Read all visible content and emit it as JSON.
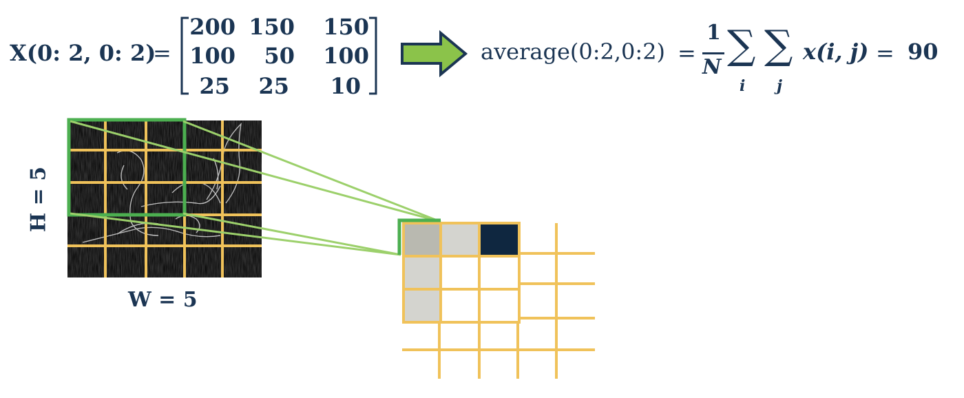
{
  "formula": {
    "lhs": "X(0: 2, 0: 2)",
    "equals": "=",
    "matrix": [
      [
        "200",
        "150",
        "150"
      ],
      [
        "100",
        "50",
        "100"
      ],
      [
        "25",
        "25",
        "10"
      ]
    ],
    "op_name": "average(0:2,0:2)",
    "equals2": "=",
    "frac_num": "1",
    "frac_den": "N",
    "sum_symbol": "∑",
    "sum_index_i": "i",
    "sum_index_j": "j",
    "term": "x(i, j)",
    "equals3": "=",
    "result": "90"
  },
  "labels": {
    "height": "H = 5",
    "width": "W = 5"
  },
  "output": {
    "cell_values": [
      "0.72",
      "0.82",
      "0.10",
      "0.82",
      "0.82"
    ]
  },
  "colors": {
    "navy": "#1b3553",
    "grid": "#f0c25a",
    "highlight": "#4caf50",
    "connector": "#9cd06b",
    "arrow_fill": "#8bc34a",
    "cell_gray_dark": "#b9b9b0",
    "cell_gray_light": "#d4d4cf",
    "cell_dark": "#0f2740"
  }
}
